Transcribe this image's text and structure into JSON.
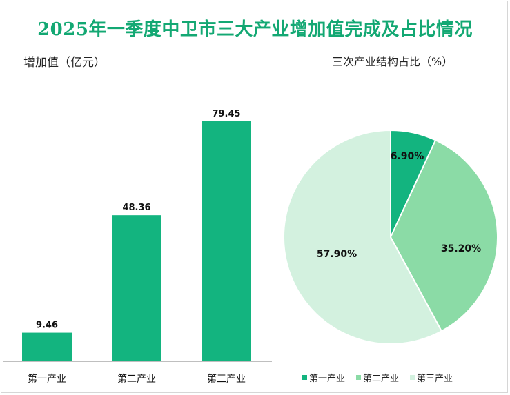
{
  "title": "2025年一季度中卫市三大产业增加值完成及占比情况",
  "chart_data": [
    {
      "type": "bar",
      "title": "增加值（亿元）",
      "categories": [
        "第一产业",
        "第二产业",
        "第三产业"
      ],
      "values": [
        9.46,
        48.36,
        79.45
      ],
      "data_labels": [
        "9.46",
        "48.36",
        "79.45"
      ],
      "color": "#13b47f",
      "ylim": [
        0,
        90
      ],
      "grid": false
    },
    {
      "type": "pie",
      "title": "三次产业结构占比（%）",
      "labels": [
        "第一产业",
        "第二产业",
        "第三产业"
      ],
      "values": [
        6.9,
        35.2,
        57.9
      ],
      "data_labels": [
        "6.90%",
        "35.20%",
        "57.90%"
      ],
      "colors": [
        "#13b47f",
        "#8bdba6",
        "#d3f1df"
      ],
      "legend": "bottom"
    }
  ]
}
